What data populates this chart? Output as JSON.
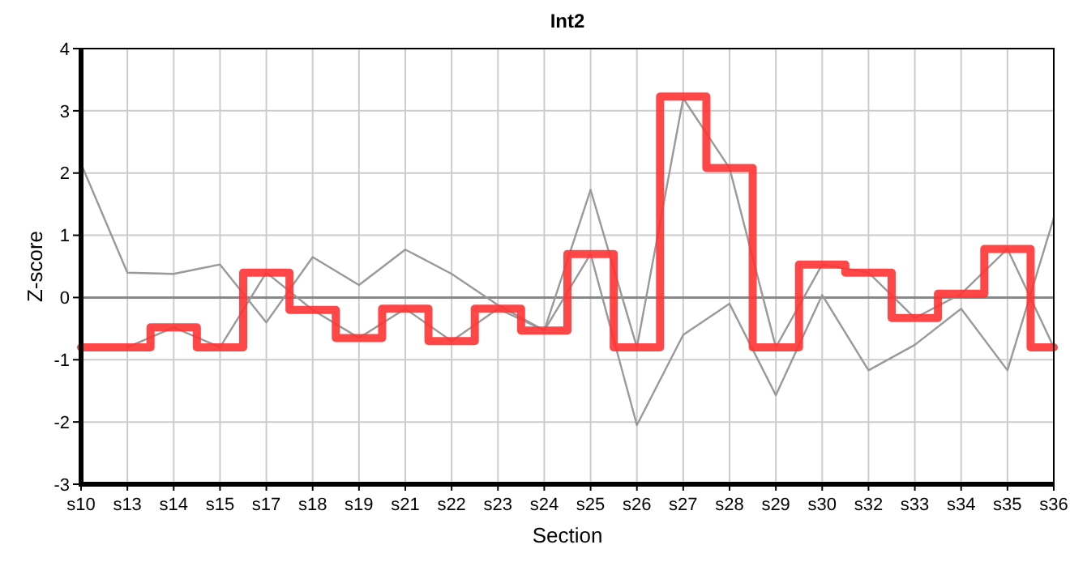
{
  "chart_data": {
    "type": "line",
    "title": "Int2",
    "xlabel": "Section",
    "ylabel": "Z-score",
    "categories": [
      "s10",
      "s13",
      "s14",
      "s15",
      "s17",
      "s18",
      "s19",
      "s21",
      "s22",
      "s23",
      "s24",
      "s25",
      "s26",
      "s27",
      "s28",
      "s29",
      "s30",
      "s32",
      "s33",
      "s34",
      "s35",
      "s36"
    ],
    "series": [
      {
        "color": "#999999",
        "values": [
          2.15,
          0.4,
          0.38,
          0.53,
          -0.4,
          0.65,
          0.2,
          0.77,
          0.38,
          -0.12,
          -0.53,
          1.73,
          -0.8,
          3.2,
          2.08,
          -0.8,
          0.53,
          0.4,
          -0.33,
          0.06,
          0.78,
          -0.8
        ]
      },
      {
        "color": "#999999",
        "values": [
          null,
          -0.8,
          -0.48,
          -0.8,
          0.4,
          -0.2,
          -0.65,
          -0.18,
          -0.7,
          -0.18,
          -0.53,
          0.7,
          -2.05,
          -0.6,
          -0.1,
          -1.57,
          0.04,
          -1.17,
          -0.76,
          -0.18,
          -1.17,
          1.28
        ]
      },
      {
        "type": "step",
        "color": "#ff3333",
        "values": [
          -0.8,
          -0.8,
          -0.48,
          -0.8,
          0.4,
          -0.2,
          -0.65,
          -0.18,
          -0.7,
          -0.18,
          -0.53,
          0.7,
          -0.8,
          3.23,
          2.08,
          -0.8,
          0.53,
          0.4,
          -0.33,
          0.06,
          0.78,
          -0.8
        ]
      }
    ],
    "ylim": [
      -3,
      4
    ],
    "yticks": [
      -3,
      -2,
      -1,
      0,
      1,
      2,
      3,
      4
    ],
    "grid": true,
    "marker": "none",
    "line_style": "solid",
    "ref_lines": [
      {
        "axis": "y",
        "value": 0,
        "color": "#888888"
      }
    ]
  }
}
